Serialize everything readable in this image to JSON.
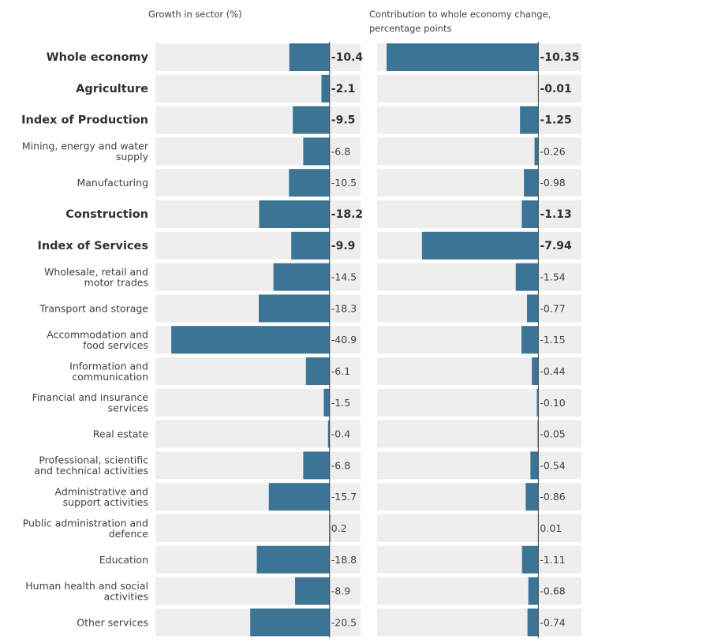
{
  "chart_data": {
    "type": "bar",
    "orientation": "horizontal",
    "bar_color": "#3C7495",
    "track_color": "#EEEEEF",
    "axis_color": "#414042",
    "categories": [
      {
        "label": "Whole economy",
        "lines": [
          "Whole economy"
        ],
        "bold": true
      },
      {
        "label": "Agriculture",
        "lines": [
          "Agriculture"
        ],
        "bold": true
      },
      {
        "label": "Index of Production",
        "lines": [
          "Index of Production"
        ],
        "bold": true
      },
      {
        "label": "Mining, energy and water supply",
        "lines": [
          "Mining, energy and water",
          "supply"
        ],
        "bold": false
      },
      {
        "label": "Manufacturing",
        "lines": [
          "Manufacturing"
        ],
        "bold": false
      },
      {
        "label": "Construction",
        "lines": [
          "Construction"
        ],
        "bold": true
      },
      {
        "label": "Index of Services",
        "lines": [
          "Index of Services"
        ],
        "bold": true
      },
      {
        "label": "Wholesale, retail and motor trades",
        "lines": [
          "Wholesale, retail and",
          "motor trades"
        ],
        "bold": false
      },
      {
        "label": "Transport and storage",
        "lines": [
          "Transport and storage"
        ],
        "bold": false
      },
      {
        "label": "Accommodation and food services",
        "lines": [
          "Accommodation and",
          "food services"
        ],
        "bold": false
      },
      {
        "label": "Information and communication",
        "lines": [
          "Information and",
          "communication"
        ],
        "bold": false
      },
      {
        "label": "Financial and insurance services",
        "lines": [
          "Financial and insurance",
          "services"
        ],
        "bold": false
      },
      {
        "label": "Real estate",
        "lines": [
          "Real estate"
        ],
        "bold": false
      },
      {
        "label": "Professional, scientific and technical activities",
        "lines": [
          "Professional, scientific",
          "and technical activities"
        ],
        "bold": false
      },
      {
        "label": "Administrative and support activities",
        "lines": [
          "Administrative and",
          "support activities"
        ],
        "bold": false
      },
      {
        "label": "Public administration and defence",
        "lines": [
          "Public administration and",
          "defence"
        ],
        "bold": false
      },
      {
        "label": "Education",
        "lines": [
          "Education"
        ],
        "bold": false
      },
      {
        "label": "Human health and social activities",
        "lines": [
          "Human health and social",
          "activities"
        ],
        "bold": false
      },
      {
        "label": "Other services",
        "lines": [
          "Other services"
        ],
        "bold": false
      }
    ],
    "series": [
      {
        "title": "Growth in sector (%)",
        "values": [
          -10.4,
          -2.1,
          -9.5,
          -6.8,
          -10.5,
          -18.2,
          -9.9,
          -14.5,
          -18.3,
          -40.9,
          -6.1,
          -1.5,
          -0.4,
          -6.8,
          -15.7,
          0.2,
          -18.8,
          -8.9,
          -20.5
        ],
        "labels": [
          "-10.4",
          "-2.1",
          "-9.5",
          "-6.8",
          "-10.5",
          "-18.2",
          "-9.9",
          "-14.5",
          "-18.3",
          "-40.9",
          "-6.1",
          "-1.5",
          "-0.4",
          "-6.8",
          "-15.7",
          "0.2",
          "-18.8",
          "-8.9",
          "-20.5"
        ],
        "xlim": [
          -45,
          8
        ]
      },
      {
        "title": "Contribution to whole economy change, percentage points",
        "title_lines": [
          "Contribution to whole economy change,",
          "percentage points"
        ],
        "values": [
          -10.35,
          -0.01,
          -1.25,
          -0.26,
          -0.98,
          -1.13,
          -7.94,
          -1.54,
          -0.77,
          -1.15,
          -0.44,
          -0.1,
          -0.05,
          -0.54,
          -0.86,
          0.01,
          -1.11,
          -0.68,
          -0.74
        ],
        "labels": [
          "-10.35",
          "-0.01",
          "-1.25",
          "-0.26",
          "-0.98",
          "-1.13",
          "-7.94",
          "-1.54",
          "-0.77",
          "-1.15",
          "-0.44",
          "-0.10",
          "-0.05",
          "-0.54",
          "-0.86",
          "0.01",
          "-1.11",
          "-0.68",
          "-0.74"
        ],
        "xlim": [
          -11,
          2.94
        ]
      }
    ]
  }
}
